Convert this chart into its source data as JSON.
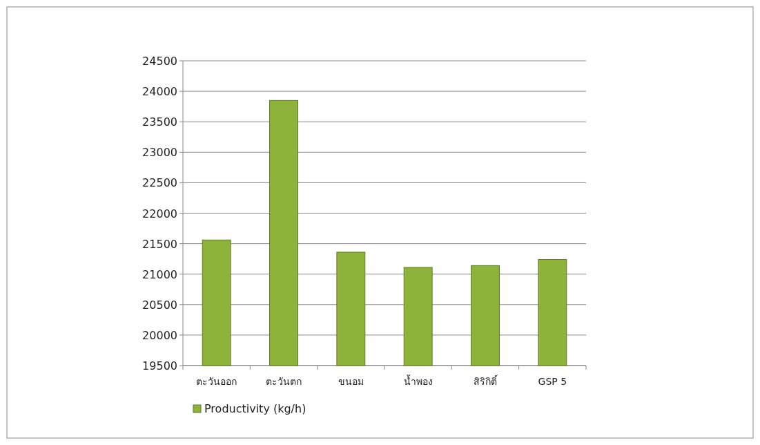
{
  "chart_data": {
    "type": "bar",
    "categories": [
      "ตะวันออก",
      "ตะวันตก",
      "ขนอม",
      "น้ำพอง",
      "สิริกิติ์",
      "GSP 5"
    ],
    "series": [
      {
        "name": "Productivity (kg/h)",
        "color": "#8db33a",
        "values": [
          21560,
          23850,
          21360,
          21110,
          21140,
          21240
        ]
      }
    ],
    "ylim": [
      19500,
      24500
    ],
    "yticks": [
      19500,
      20000,
      20500,
      21000,
      21500,
      22000,
      22500,
      23000,
      23500,
      24000,
      24500
    ],
    "grid": "y",
    "legend": "bottom left"
  }
}
